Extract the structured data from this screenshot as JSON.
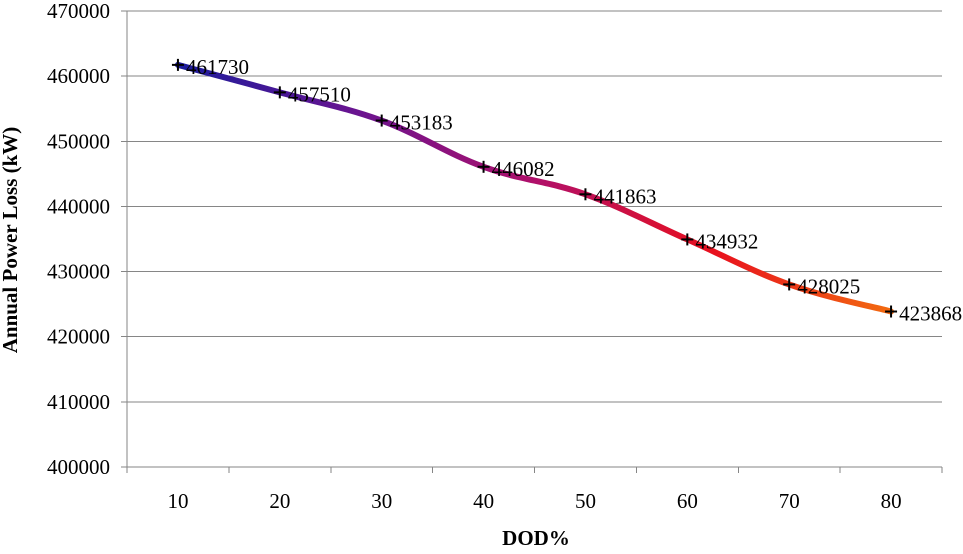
{
  "chart_data": {
    "type": "line",
    "xlabel": "DOD%",
    "ylabel": "Annual Power Loss (kW)",
    "categories": [
      "10",
      "20",
      "30",
      "40",
      "50",
      "60",
      "70",
      "80"
    ],
    "y_ticks": [
      "400000",
      "410000",
      "420000",
      "430000",
      "440000",
      "450000",
      "460000",
      "470000"
    ],
    "ylim": [
      400000,
      470000
    ],
    "grid": true,
    "series": [
      {
        "values": [
          461730,
          457510,
          453183,
          446082,
          441863,
          434932,
          428025,
          423868
        ],
        "data_labels": [
          "461730",
          "457510",
          "453183",
          "446082",
          "441863",
          "434932",
          "428025",
          "423868"
        ],
        "line_gradient": [
          "#1c1c9c",
          "#6a1490",
          "#b0106a",
          "#e8101e",
          "#f26a10"
        ],
        "marker": "plus",
        "marker_color": "#000000"
      }
    ]
  }
}
